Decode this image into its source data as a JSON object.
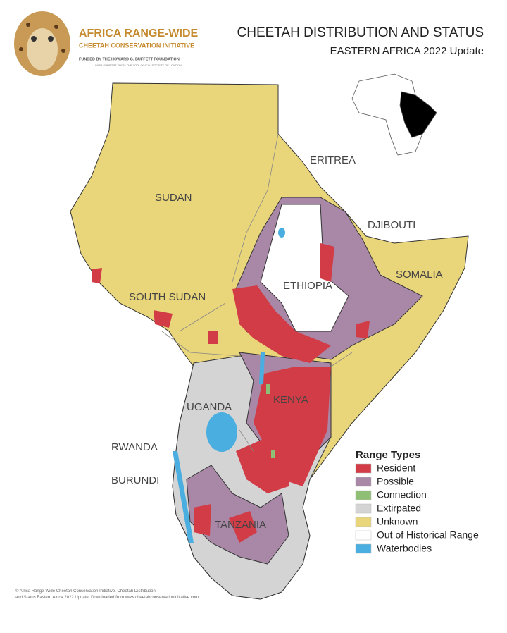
{
  "logo": {
    "name": "AFRICA RANGE-WIDE",
    "initiative": "CHEETAH CONSERVATION INITIATIVE",
    "funder": "FUNDED BY THE HOWARD G. BUFFETT FOUNDATION",
    "support": "WITH SUPPORT FROM THE ZOOLOGICAL SOCIETY OF LONDON"
  },
  "title": "CHEETAH DISTRIBUTION AND STATUS",
  "subtitle": "EASTERN AFRICA 2022 Update",
  "countries": [
    "SUDAN",
    "ERITREA",
    "DJIBOUTI",
    "SOMALIA",
    "ETHIOPIA",
    "SOUTH SUDAN",
    "UGANDA",
    "KENYA",
    "RWANDA",
    "BURUNDI",
    "TANZANIA"
  ],
  "legend": {
    "title": "Range Types",
    "items": [
      {
        "label": "Resident",
        "color": "#d23c46"
      },
      {
        "label": "Possible",
        "color": "#a888a6"
      },
      {
        "label": "Connection",
        "color": "#8fbf74"
      },
      {
        "label": "Extirpated",
        "color": "#d4d4d4"
      },
      {
        "label": "Unknown",
        "color": "#e9d57a"
      },
      {
        "label": "Out of Historical Range",
        "color": "#ffffff"
      },
      {
        "label": "Waterbodies",
        "color": "#4aaee0"
      }
    ]
  },
  "credit": "© Africa Range-Wide Cheetah Conservation Initiative. Cheetah Distribution and Status Eastern Africa 2022 Update. Downloaded from www.cheetahconservationinitiative.com"
}
